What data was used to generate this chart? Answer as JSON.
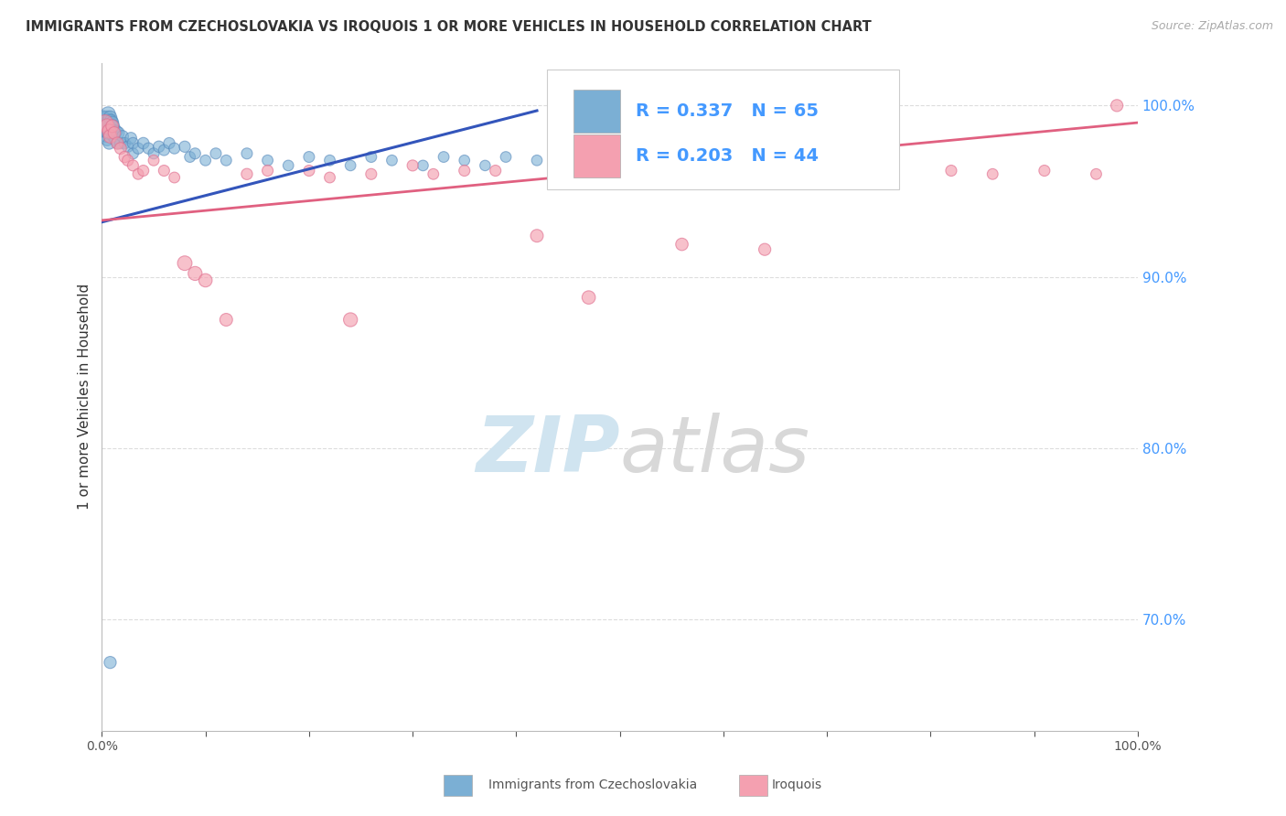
{
  "title": "IMMIGRANTS FROM CZECHOSLOVAKIA VS IROQUOIS 1 OR MORE VEHICLES IN HOUSEHOLD CORRELATION CHART",
  "source": "Source: ZipAtlas.com",
  "ylabel": "1 or more Vehicles in Household",
  "x_min": 0.0,
  "x_max": 1.0,
  "y_min": 0.635,
  "y_max": 1.025,
  "y_ticks_right": [
    0.7,
    0.8,
    0.9,
    1.0
  ],
  "y_tick_labels_right": [
    "70.0%",
    "80.0%",
    "90.0%",
    "100.0%"
  ],
  "blue_R": 0.337,
  "blue_N": 65,
  "pink_R": 0.203,
  "pink_N": 44,
  "blue_color": "#7BAFD4",
  "pink_color": "#F4A0B0",
  "blue_edge_color": "#5588BB",
  "pink_edge_color": "#E07090",
  "blue_line_color": "#3355BB",
  "pink_line_color": "#E06080",
  "legend_text_color": "#4499FF",
  "watermark_color": "#D0E4F0",
  "blue_scatter_x": [
    0.001,
    0.002,
    0.002,
    0.003,
    0.003,
    0.004,
    0.004,
    0.005,
    0.005,
    0.005,
    0.006,
    0.006,
    0.006,
    0.007,
    0.007,
    0.007,
    0.008,
    0.008,
    0.009,
    0.009,
    0.01,
    0.01,
    0.011,
    0.011,
    0.012,
    0.013,
    0.014,
    0.015,
    0.016,
    0.018,
    0.02,
    0.022,
    0.025,
    0.028,
    0.03,
    0.03,
    0.035,
    0.04,
    0.045,
    0.05,
    0.055,
    0.06,
    0.065,
    0.07,
    0.08,
    0.085,
    0.09,
    0.1,
    0.11,
    0.12,
    0.14,
    0.16,
    0.18,
    0.2,
    0.22,
    0.24,
    0.26,
    0.28,
    0.31,
    0.33,
    0.35,
    0.37,
    0.39,
    0.42,
    0.008
  ],
  "blue_scatter_y": [
    0.993,
    0.993,
    0.988,
    0.991,
    0.985,
    0.989,
    0.982,
    0.993,
    0.987,
    0.98,
    0.995,
    0.99,
    0.984,
    0.991,
    0.986,
    0.978,
    0.993,
    0.987,
    0.991,
    0.985,
    0.99,
    0.984,
    0.988,
    0.982,
    0.985,
    0.98,
    0.985,
    0.978,
    0.984,
    0.978,
    0.982,
    0.978,
    0.976,
    0.981,
    0.978,
    0.972,
    0.975,
    0.978,
    0.975,
    0.972,
    0.976,
    0.974,
    0.978,
    0.975,
    0.976,
    0.97,
    0.972,
    0.968,
    0.972,
    0.968,
    0.972,
    0.968,
    0.965,
    0.97,
    0.968,
    0.965,
    0.97,
    0.968,
    0.965,
    0.97,
    0.968,
    0.965,
    0.97,
    0.968,
    0.675
  ],
  "blue_scatter_sizes": [
    120,
    100,
    110,
    100,
    95,
    90,
    85,
    110,
    100,
    90,
    130,
    115,
    100,
    120,
    105,
    90,
    110,
    95,
    105,
    90,
    100,
    88,
    95,
    85,
    90,
    82,
    88,
    80,
    88,
    80,
    85,
    80,
    78,
    82,
    80,
    75,
    78,
    82,
    78,
    75,
    80,
    75,
    78,
    75,
    78,
    72,
    75,
    72,
    75,
    72,
    75,
    72,
    70,
    74,
    72,
    70,
    73,
    71,
    70,
    72,
    70,
    68,
    71,
    70,
    90
  ],
  "pink_scatter_x": [
    0.003,
    0.005,
    0.007,
    0.008,
    0.01,
    0.012,
    0.015,
    0.018,
    0.022,
    0.025,
    0.03,
    0.035,
    0.04,
    0.05,
    0.06,
    0.07,
    0.08,
    0.09,
    0.1,
    0.12,
    0.14,
    0.16,
    0.2,
    0.22,
    0.24,
    0.26,
    0.3,
    0.32,
    0.35,
    0.38,
    0.42,
    0.47,
    0.5,
    0.52,
    0.56,
    0.6,
    0.64,
    0.68,
    0.75,
    0.82,
    0.86,
    0.91,
    0.96,
    0.98
  ],
  "pink_scatter_y": [
    0.99,
    0.988,
    0.985,
    0.982,
    0.988,
    0.984,
    0.978,
    0.975,
    0.97,
    0.968,
    0.965,
    0.96,
    0.962,
    0.968,
    0.962,
    0.958,
    0.908,
    0.902,
    0.898,
    0.875,
    0.96,
    0.962,
    0.962,
    0.958,
    0.875,
    0.96,
    0.965,
    0.96,
    0.962,
    0.962,
    0.924,
    0.888,
    0.962,
    0.96,
    0.919,
    0.962,
    0.916,
    0.96,
    0.962,
    0.962,
    0.96,
    0.962,
    0.96,
    1.0
  ],
  "pink_scatter_sizes": [
    150,
    130,
    120,
    110,
    100,
    95,
    90,
    85,
    80,
    78,
    75,
    72,
    75,
    72,
    75,
    72,
    130,
    120,
    110,
    100,
    78,
    75,
    75,
    72,
    120,
    75,
    75,
    72,
    75,
    75,
    100,
    110,
    75,
    72,
    95,
    75,
    90,
    75,
    75,
    75,
    72,
    75,
    72,
    90
  ],
  "blue_trend_x": [
    0.0,
    0.42
  ],
  "blue_trend_y": [
    0.932,
    0.997
  ],
  "pink_trend_x": [
    0.0,
    1.0
  ],
  "pink_trend_y": [
    0.933,
    0.99
  ],
  "grid_color": "#DDDDDD",
  "background_color": "#FFFFFF",
  "legend_label_blue": "Immigrants from Czechoslovakia",
  "legend_label_pink": "Iroquois"
}
